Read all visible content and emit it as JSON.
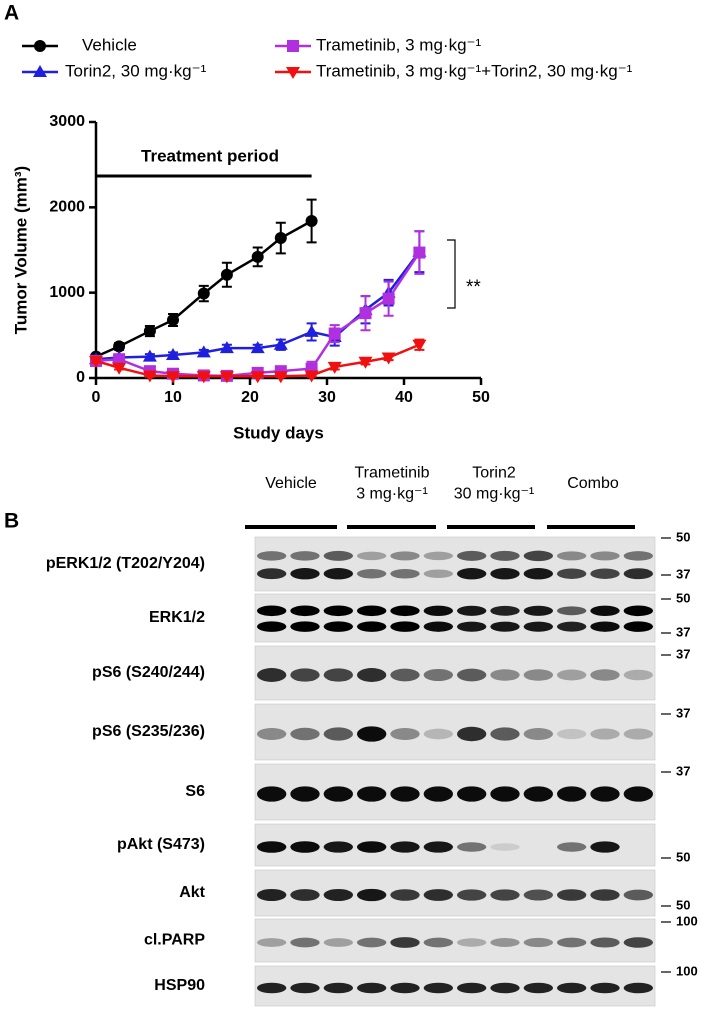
{
  "panel_labels": [
    "A",
    "B"
  ],
  "chart_data": {
    "type": "line",
    "xlabel": "Study days",
    "ylabel": "Tumor Volume (mm³)",
    "xlim": [
      0,
      50
    ],
    "xticks": [
      0,
      10,
      20,
      30,
      40,
      50
    ],
    "ylim": [
      0,
      3000
    ],
    "yticks": [
      0,
      1000,
      2000,
      3000
    ],
    "treatment_period": {
      "text": "Treatment period",
      "start": 0,
      "end": 28
    },
    "significance": "**",
    "series": [
      {
        "name": "Vehicle",
        "color": "#000000",
        "marker": "circle",
        "x": [
          0,
          3,
          7,
          10,
          14,
          17,
          21,
          24,
          28
        ],
        "values": [
          250,
          370,
          550,
          680,
          990,
          1210,
          1420,
          1640,
          1840
        ],
        "errors": [
          30,
          40,
          60,
          70,
          90,
          140,
          110,
          180,
          250
        ]
      },
      {
        "name": "Torin2, 30 mg·kg⁻¹",
        "color": "#1f1fe0",
        "marker": "triangle-up",
        "x": [
          0,
          3,
          7,
          10,
          14,
          17,
          21,
          24,
          28,
          31,
          35,
          38,
          42
        ],
        "values": [
          220,
          240,
          250,
          270,
          300,
          350,
          350,
          390,
          540,
          480,
          800,
          1000,
          1480
        ],
        "errors": [
          30,
          30,
          30,
          30,
          30,
          40,
          40,
          60,
          100,
          100,
          160,
          150,
          240
        ]
      },
      {
        "name": "Trametinib, 3 mg·kg⁻¹",
        "color": "#b030e0",
        "marker": "square",
        "x": [
          0,
          3,
          7,
          10,
          14,
          17,
          21,
          24,
          28,
          31,
          35,
          38,
          42
        ],
        "values": [
          200,
          220,
          80,
          50,
          30,
          25,
          60,
          80,
          110,
          520,
          760,
          930,
          1470
        ],
        "errors": [
          30,
          30,
          40,
          20,
          20,
          20,
          30,
          50,
          80,
          100,
          200,
          200,
          250
        ]
      },
      {
        "name": "Trametinib, 3 mg·kg⁻¹+Torin2, 30 mg·kg⁻¹",
        "color": "#f01010",
        "marker": "triangle-down",
        "x": [
          0,
          3,
          7,
          10,
          14,
          17,
          21,
          24,
          28,
          31,
          35,
          38,
          42
        ],
        "values": [
          200,
          120,
          30,
          20,
          20,
          20,
          20,
          20,
          30,
          130,
          190,
          240,
          390
        ],
        "errors": [
          20,
          20,
          15,
          10,
          10,
          10,
          10,
          10,
          15,
          30,
          30,
          30,
          60
        ]
      }
    ]
  },
  "blot": {
    "groups": [
      [
        "Vehicle"
      ],
      [
        "Trametinib",
        "3 mg·kg⁻¹"
      ],
      [
        "Torin2",
        "30 mg·kg⁻¹"
      ],
      [
        "Combo"
      ]
    ],
    "rows": [
      {
        "label": "pERK1/2 (T202/Y204)",
        "markers": [
          50,
          37
        ]
      },
      {
        "label": "ERK1/2",
        "markers": [
          50,
          37
        ]
      },
      {
        "label": "pS6 (S240/244)",
        "markers": [
          37
        ]
      },
      {
        "label": "pS6 (S235/236)",
        "markers": [
          37
        ]
      },
      {
        "label": "S6",
        "markers": [
          37
        ]
      },
      {
        "label": "pAkt (S473)",
        "markers": [
          50
        ]
      },
      {
        "label": "Akt",
        "markers": [
          50
        ]
      },
      {
        "label": "cl.PARP",
        "markers": [
          100
        ]
      },
      {
        "label": "HSP90",
        "markers": [
          100
        ]
      }
    ]
  }
}
